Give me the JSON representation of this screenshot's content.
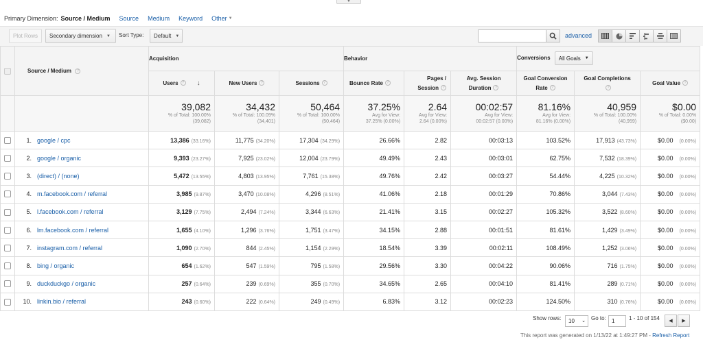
{
  "dimension_bar": {
    "label": "Primary Dimension:",
    "active": "Source / Medium",
    "links": [
      "Source",
      "Medium",
      "Keyword",
      "Other"
    ]
  },
  "toolbar": {
    "plot_rows": "Plot Rows",
    "secondary_dimension": "Secondary dimension",
    "sort_type_label": "Sort Type:",
    "sort_type_value": "Default",
    "search_placeholder": "",
    "advanced": "advanced"
  },
  "table": {
    "groups": {
      "acquisition": "Acquisition",
      "behavior": "Behavior",
      "conversions": "Conversions",
      "goal_select": "All Goals"
    },
    "columns": {
      "source": "Source / Medium",
      "users": "Users",
      "new_users": "New Users",
      "sessions": "Sessions",
      "bounce_rate": "Bounce Rate",
      "pages_session_1": "Pages /",
      "pages_session_2": "Session",
      "avg_duration_1": "Avg. Session",
      "avg_duration_2": "Duration",
      "goal_conv_1": "Goal Conversion",
      "goal_conv_2": "Rate",
      "goal_completions": "Goal Completions",
      "goal_value": "Goal Value"
    },
    "totals": {
      "users": {
        "value": "39,082",
        "sub1": "% of Total: 100.00%",
        "sub2": "(39,082)"
      },
      "new_users": {
        "value": "34,432",
        "sub1": "% of Total: 100.09%",
        "sub2": "(34,401)"
      },
      "sessions": {
        "value": "50,464",
        "sub1": "% of Total: 100.00%",
        "sub2": "(50,464)"
      },
      "bounce_rate": {
        "value": "37.25%",
        "sub1": "Avg for View:",
        "sub2": "37.25% (0.00%)"
      },
      "pages_session": {
        "value": "2.64",
        "sub1": "Avg for View:",
        "sub2": "2.64 (0.00%)"
      },
      "avg_duration": {
        "value": "00:02:57",
        "sub1": "Avg for View:",
        "sub2": "00:02:57 (0.00%)"
      },
      "goal_conv": {
        "value": "81.16%",
        "sub1": "Avg for View:",
        "sub2": "81.16% (0.00%)"
      },
      "goal_completions": {
        "value": "40,959",
        "sub1": "% of Total: 100.00%",
        "sub2": "(40,959)"
      },
      "goal_value": {
        "value": "$0.00",
        "sub1": "% of Total: 0.00%",
        "sub2": "($0.00)"
      }
    },
    "rows": [
      {
        "idx": "1.",
        "source": "google / cpc",
        "users": "13,386",
        "users_pct": "(33.16%)",
        "new_users": "11,775",
        "new_users_pct": "(34.20%)",
        "sessions": "17,304",
        "sessions_pct": "(34.29%)",
        "bounce": "26.66%",
        "pages": "2.82",
        "duration": "00:03:13",
        "conv": "103.52%",
        "completions": "17,913",
        "completions_pct": "(43.73%)",
        "value": "$0.00",
        "value_pct": "(0.00%)"
      },
      {
        "idx": "2.",
        "source": "google / organic",
        "users": "9,393",
        "users_pct": "(23.27%)",
        "new_users": "7,925",
        "new_users_pct": "(23.02%)",
        "sessions": "12,004",
        "sessions_pct": "(23.79%)",
        "bounce": "49.49%",
        "pages": "2.43",
        "duration": "00:03:01",
        "conv": "62.75%",
        "completions": "7,532",
        "completions_pct": "(18.39%)",
        "value": "$0.00",
        "value_pct": "(0.00%)"
      },
      {
        "idx": "3.",
        "source": "(direct) / (none)",
        "users": "5,472",
        "users_pct": "(13.55%)",
        "new_users": "4,803",
        "new_users_pct": "(13.95%)",
        "sessions": "7,761",
        "sessions_pct": "(15.38%)",
        "bounce": "49.76%",
        "pages": "2.42",
        "duration": "00:03:27",
        "conv": "54.44%",
        "completions": "4,225",
        "completions_pct": "(10.32%)",
        "value": "$0.00",
        "value_pct": "(0.00%)"
      },
      {
        "idx": "4.",
        "source": "m.facebook.com / referral",
        "users": "3,985",
        "users_pct": "(9.87%)",
        "new_users": "3,470",
        "new_users_pct": "(10.08%)",
        "sessions": "4,296",
        "sessions_pct": "(8.51%)",
        "bounce": "41.06%",
        "pages": "2.18",
        "duration": "00:01:29",
        "conv": "70.86%",
        "completions": "3,044",
        "completions_pct": "(7.43%)",
        "value": "$0.00",
        "value_pct": "(0.00%)"
      },
      {
        "idx": "5.",
        "source": "l.facebook.com / referral",
        "users": "3,129",
        "users_pct": "(7.75%)",
        "new_users": "2,494",
        "new_users_pct": "(7.24%)",
        "sessions": "3,344",
        "sessions_pct": "(6.63%)",
        "bounce": "21.41%",
        "pages": "3.15",
        "duration": "00:02:27",
        "conv": "105.32%",
        "completions": "3,522",
        "completions_pct": "(8.60%)",
        "value": "$0.00",
        "value_pct": "(0.00%)"
      },
      {
        "idx": "6.",
        "source": "lm.facebook.com / referral",
        "users": "1,655",
        "users_pct": "(4.10%)",
        "new_users": "1,296",
        "new_users_pct": "(3.76%)",
        "sessions": "1,751",
        "sessions_pct": "(3.47%)",
        "bounce": "34.15%",
        "pages": "2.88",
        "duration": "00:01:51",
        "conv": "81.61%",
        "completions": "1,429",
        "completions_pct": "(3.49%)",
        "value": "$0.00",
        "value_pct": "(0.00%)"
      },
      {
        "idx": "7.",
        "source": "instagram.com / referral",
        "users": "1,090",
        "users_pct": "(2.70%)",
        "new_users": "844",
        "new_users_pct": "(2.45%)",
        "sessions": "1,154",
        "sessions_pct": "(2.29%)",
        "bounce": "18.54%",
        "pages": "3.39",
        "duration": "00:02:11",
        "conv": "108.49%",
        "completions": "1,252",
        "completions_pct": "(3.06%)",
        "value": "$0.00",
        "value_pct": "(0.00%)"
      },
      {
        "idx": "8.",
        "source": "bing / organic",
        "users": "654",
        "users_pct": "(1.62%)",
        "new_users": "547",
        "new_users_pct": "(1.59%)",
        "sessions": "795",
        "sessions_pct": "(1.58%)",
        "bounce": "29.56%",
        "pages": "3.30",
        "duration": "00:04:22",
        "conv": "90.06%",
        "completions": "716",
        "completions_pct": "(1.75%)",
        "value": "$0.00",
        "value_pct": "(0.00%)"
      },
      {
        "idx": "9.",
        "source": "duckduckgo / organic",
        "users": "257",
        "users_pct": "(0.64%)",
        "new_users": "239",
        "new_users_pct": "(0.69%)",
        "sessions": "355",
        "sessions_pct": "(0.70%)",
        "bounce": "34.65%",
        "pages": "2.65",
        "duration": "00:04:10",
        "conv": "81.41%",
        "completions": "289",
        "completions_pct": "(0.71%)",
        "value": "$0.00",
        "value_pct": "(0.00%)"
      },
      {
        "idx": "10.",
        "source": "linkin.bio / referral",
        "users": "243",
        "users_pct": "(0.60%)",
        "new_users": "222",
        "new_users_pct": "(0.64%)",
        "sessions": "249",
        "sessions_pct": "(0.49%)",
        "bounce": "6.83%",
        "pages": "3.12",
        "duration": "00:02:23",
        "conv": "124.50%",
        "completions": "310",
        "completions_pct": "(0.76%)",
        "value": "$0.00",
        "value_pct": "(0.00%)"
      }
    ]
  },
  "pagination": {
    "show_rows_label": "Show rows:",
    "show_rows_value": "10",
    "goto_label": "Go to:",
    "goto_value": "1",
    "range": "1 - 10 of 154"
  },
  "footer": {
    "generated": "This report was generated on 1/13/22 at 1:49:27 PM -",
    "refresh": "Refresh Report"
  },
  "icons": {
    "search": "search-icon",
    "sort": "sort-down-arrow-icon",
    "help": "help-question-icon"
  },
  "colors": {
    "link": "#1a5fa8",
    "header_bg": "#f4f4f4"
  }
}
